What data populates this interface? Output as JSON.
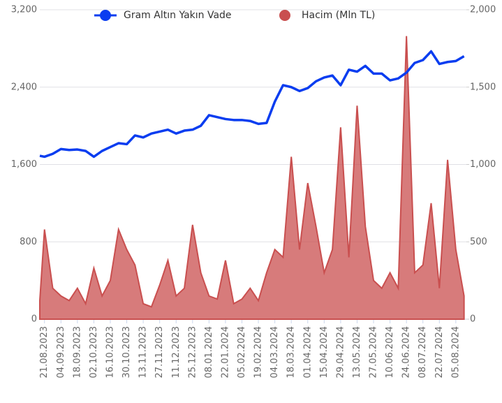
{
  "chart_data": {
    "type": "line",
    "x": [
      "17.08.2023",
      "21.08.2023",
      "28.08.2023",
      "04.09.2023",
      "11.09.2023",
      "18.09.2023",
      "25.09.2023",
      "02.10.2023",
      "09.10.2023",
      "16.10.2023",
      "23.10.2023",
      "30.10.2023",
      "06.11.2023",
      "13.11.2023",
      "20.11.2023",
      "27.11.2023",
      "04.12.2023",
      "11.12.2023",
      "18.12.2023",
      "25.12.2023",
      "01.01.2024",
      "08.01.2024",
      "15.01.2024",
      "22.01.2024",
      "29.01.2024",
      "05.02.2024",
      "12.02.2024",
      "19.02.2024",
      "26.02.2024",
      "04.03.2024",
      "11.03.2024",
      "18.03.2024",
      "25.03.2024",
      "01.04.2024",
      "08.04.2024",
      "15.04.2024",
      "22.04.2024",
      "29.04.2024",
      "06.05.2024",
      "13.05.2024",
      "20.05.2024",
      "27.05.2024",
      "03.06.2024",
      "10.06.2024",
      "17.06.2024",
      "24.06.2024",
      "01.07.2024",
      "08.07.2024",
      "15.07.2024",
      "22.07.2024",
      "29.07.2024",
      "05.08.2024",
      "12.08.2024"
    ],
    "xlim": [
      "17.08.2023",
      "14.08.2024"
    ],
    "xticks": [
      "21.08.2023",
      "04.09.2023",
      "18.09.2023",
      "02.10.2023",
      "16.10.2023",
      "30.10.2023",
      "13.11.2023",
      "27.11.2023",
      "11.12.2023",
      "25.12.2023",
      "08.01.2024",
      "22.01.2024",
      "05.02.2024",
      "19.02.2024",
      "04.03.2024",
      "18.03.2024",
      "01.04.2024",
      "15.04.2024",
      "29.04.2024",
      "13.05.2024",
      "27.05.2024",
      "10.06.2024",
      "24.06.2024",
      "08.07.2024",
      "22.07.2024",
      "05.08.2024"
    ],
    "series": [
      {
        "name": "Gram Altın Yakın Vade",
        "type": "line",
        "color": "#0a3df0",
        "values": [
          1690,
          1680,
          1710,
          1760,
          1750,
          1755,
          1740,
          1680,
          1740,
          1780,
          1820,
          1810,
          1900,
          1880,
          1920,
          1940,
          1960,
          1920,
          1950,
          1960,
          2000,
          2110,
          2090,
          2070,
          2060,
          2060,
          2050,
          2020,
          2030,
          2250,
          2420,
          2400,
          2360,
          2390,
          2460,
          2500,
          2520,
          2420,
          2580,
          2560,
          2620,
          2540,
          2540,
          2470,
          2490,
          2550,
          2650,
          2680,
          2770,
          2640,
          2660,
          2670,
          2720
        ]
      },
      {
        "name": "Hacim (Mln TL)",
        "type": "area",
        "axis": "y2",
        "color": "#c94f4f",
        "values": [
          120,
          580,
          200,
          150,
          120,
          200,
          100,
          330,
          150,
          250,
          580,
          450,
          350,
          100,
          80,
          220,
          380,
          150,
          200,
          610,
          300,
          150,
          130,
          380,
          100,
          130,
          200,
          120,
          300,
          450,
          400,
          1050,
          450,
          880,
          600,
          300,
          450,
          1240,
          400,
          1380,
          600,
          250,
          200,
          300,
          200,
          1830,
          300,
          350,
          750,
          200,
          1030,
          450,
          150
        ]
      }
    ],
    "ylim": [
      0,
      3200
    ],
    "yticks": [
      0,
      800,
      {
        "value": 1600,
        "label": "1,600"
      },
      {
        "value": 2400,
        "label": "2,400"
      },
      {
        "value": 3200,
        "label": "3,200"
      }
    ],
    "y2lim": [
      0,
      2000
    ],
    "y2ticks": [
      0,
      500,
      {
        "value": 1000,
        "label": "1,000"
      },
      {
        "value": 1500,
        "label": "1,500"
      },
      {
        "value": 2000,
        "label": "2,000"
      }
    ],
    "grid": true
  }
}
